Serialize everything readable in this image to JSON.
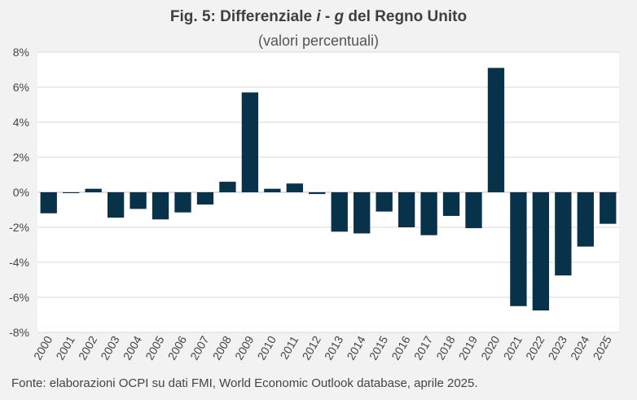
{
  "chart_data": {
    "type": "bar",
    "title_prefix": "Fig. 5: Differenziale ",
    "title_i": "i",
    "title_mid": " - ",
    "title_g": "g",
    "title_suffix": " del Regno Unito",
    "subtitle": "(valori percentuali)",
    "source": "Fonte: elaborazioni OCPI su dati FMI, World Economic Outlook database, aprile 2025.",
    "categories": [
      "2000",
      "2001",
      "2002",
      "2003",
      "2004",
      "2005",
      "2006",
      "2007",
      "2008",
      "2009",
      "2010",
      "2011",
      "2012",
      "2013",
      "2014",
      "2015",
      "2016",
      "2017",
      "2018",
      "2019",
      "2020",
      "2021",
      "2022",
      "2023",
      "2024",
      "2025"
    ],
    "values": [
      -1.2,
      -0.05,
      0.2,
      -1.45,
      -0.95,
      -1.55,
      -1.15,
      -0.7,
      0.6,
      5.7,
      0.2,
      0.5,
      -0.1,
      -2.25,
      -2.35,
      -1.1,
      -2.0,
      -2.45,
      -1.35,
      -2.05,
      7.1,
      -6.5,
      -6.75,
      -4.75,
      -3.1,
      -1.8
    ],
    "ylim": [
      -8,
      8
    ],
    "yticks": [
      8,
      6,
      4,
      2,
      0,
      -2,
      -4,
      -6,
      -8
    ],
    "ytick_labels": [
      "8%",
      "6%",
      "4%",
      "2%",
      "0%",
      "-2%",
      "-4%",
      "-6%",
      "-8%"
    ],
    "bar_color": "#08324a",
    "grid": true
  }
}
